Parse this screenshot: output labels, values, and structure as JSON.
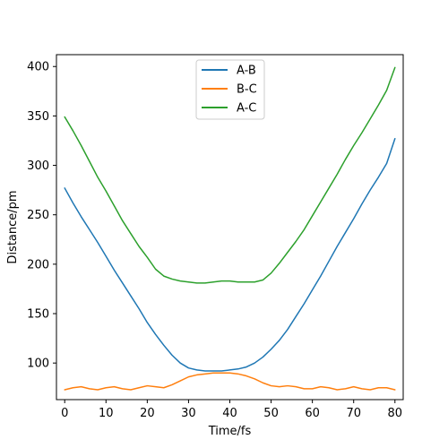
{
  "chart_data": {
    "type": "line",
    "title": "",
    "xlabel": "Time/fs",
    "ylabel": "Distance/pm",
    "xlim": [
      -2,
      82
    ],
    "ylim": [
      63,
      412
    ],
    "xticks": [
      0,
      10,
      20,
      30,
      40,
      50,
      60,
      70,
      80
    ],
    "yticks": [
      100,
      150,
      200,
      250,
      300,
      350,
      400
    ],
    "grid": false,
    "legend_position": "top-center",
    "series": [
      {
        "name": "A-B",
        "color": "#1f77b4",
        "x": [
          0,
          2,
          4,
          6,
          8,
          10,
          12,
          14,
          16,
          18,
          20,
          22,
          24,
          26,
          28,
          30,
          32,
          34,
          36,
          38,
          40,
          42,
          44,
          46,
          48,
          50,
          52,
          54,
          56,
          58,
          60,
          62,
          64,
          66,
          68,
          70,
          72,
          74,
          76,
          78,
          80
        ],
        "values": [
          277,
          262,
          248,
          235,
          222,
          208,
          194,
          181,
          168,
          155,
          141,
          129,
          118,
          108,
          100,
          95,
          93,
          92,
          92,
          92,
          93,
          94,
          96,
          100,
          106,
          114,
          123,
          134,
          147,
          160,
          174,
          188,
          203,
          218,
          232,
          246,
          261,
          275,
          288,
          302,
          327
        ],
        "line_width": 1.5
      },
      {
        "name": "B-C",
        "color": "#ff7f0e",
        "x": [
          0,
          2,
          4,
          6,
          8,
          10,
          12,
          14,
          16,
          18,
          20,
          22,
          24,
          26,
          28,
          30,
          32,
          34,
          36,
          38,
          40,
          42,
          44,
          46,
          48,
          50,
          52,
          54,
          56,
          58,
          60,
          62,
          64,
          66,
          68,
          70,
          72,
          74,
          76,
          78,
          80
        ],
        "values": [
          73,
          75,
          76,
          74,
          73,
          75,
          76,
          74,
          73,
          75,
          77,
          76,
          75,
          78,
          82,
          86,
          88,
          89,
          90,
          90,
          90,
          89,
          87,
          84,
          80,
          77,
          76,
          77,
          76,
          74,
          74,
          76,
          75,
          73,
          74,
          76,
          74,
          73,
          75,
          75,
          73
        ],
        "line_width": 1.5
      },
      {
        "name": "A-C",
        "color": "#2ca02c",
        "x": [
          0,
          2,
          4,
          6,
          8,
          10,
          12,
          14,
          16,
          18,
          20,
          22,
          24,
          26,
          28,
          30,
          32,
          34,
          36,
          38,
          40,
          42,
          44,
          46,
          48,
          50,
          52,
          54,
          56,
          58,
          60,
          62,
          64,
          66,
          68,
          70,
          72,
          74,
          76,
          78,
          80
        ],
        "values": [
          349,
          335,
          320,
          304,
          288,
          274,
          259,
          244,
          231,
          218,
          207,
          195,
          188,
          185,
          183,
          182,
          181,
          181,
          182,
          183,
          183,
          182,
          182,
          182,
          184,
          191,
          201,
          212,
          223,
          235,
          249,
          263,
          277,
          291,
          306,
          320,
          333,
          347,
          361,
          376,
          399
        ],
        "line_width": 1.5
      }
    ]
  }
}
